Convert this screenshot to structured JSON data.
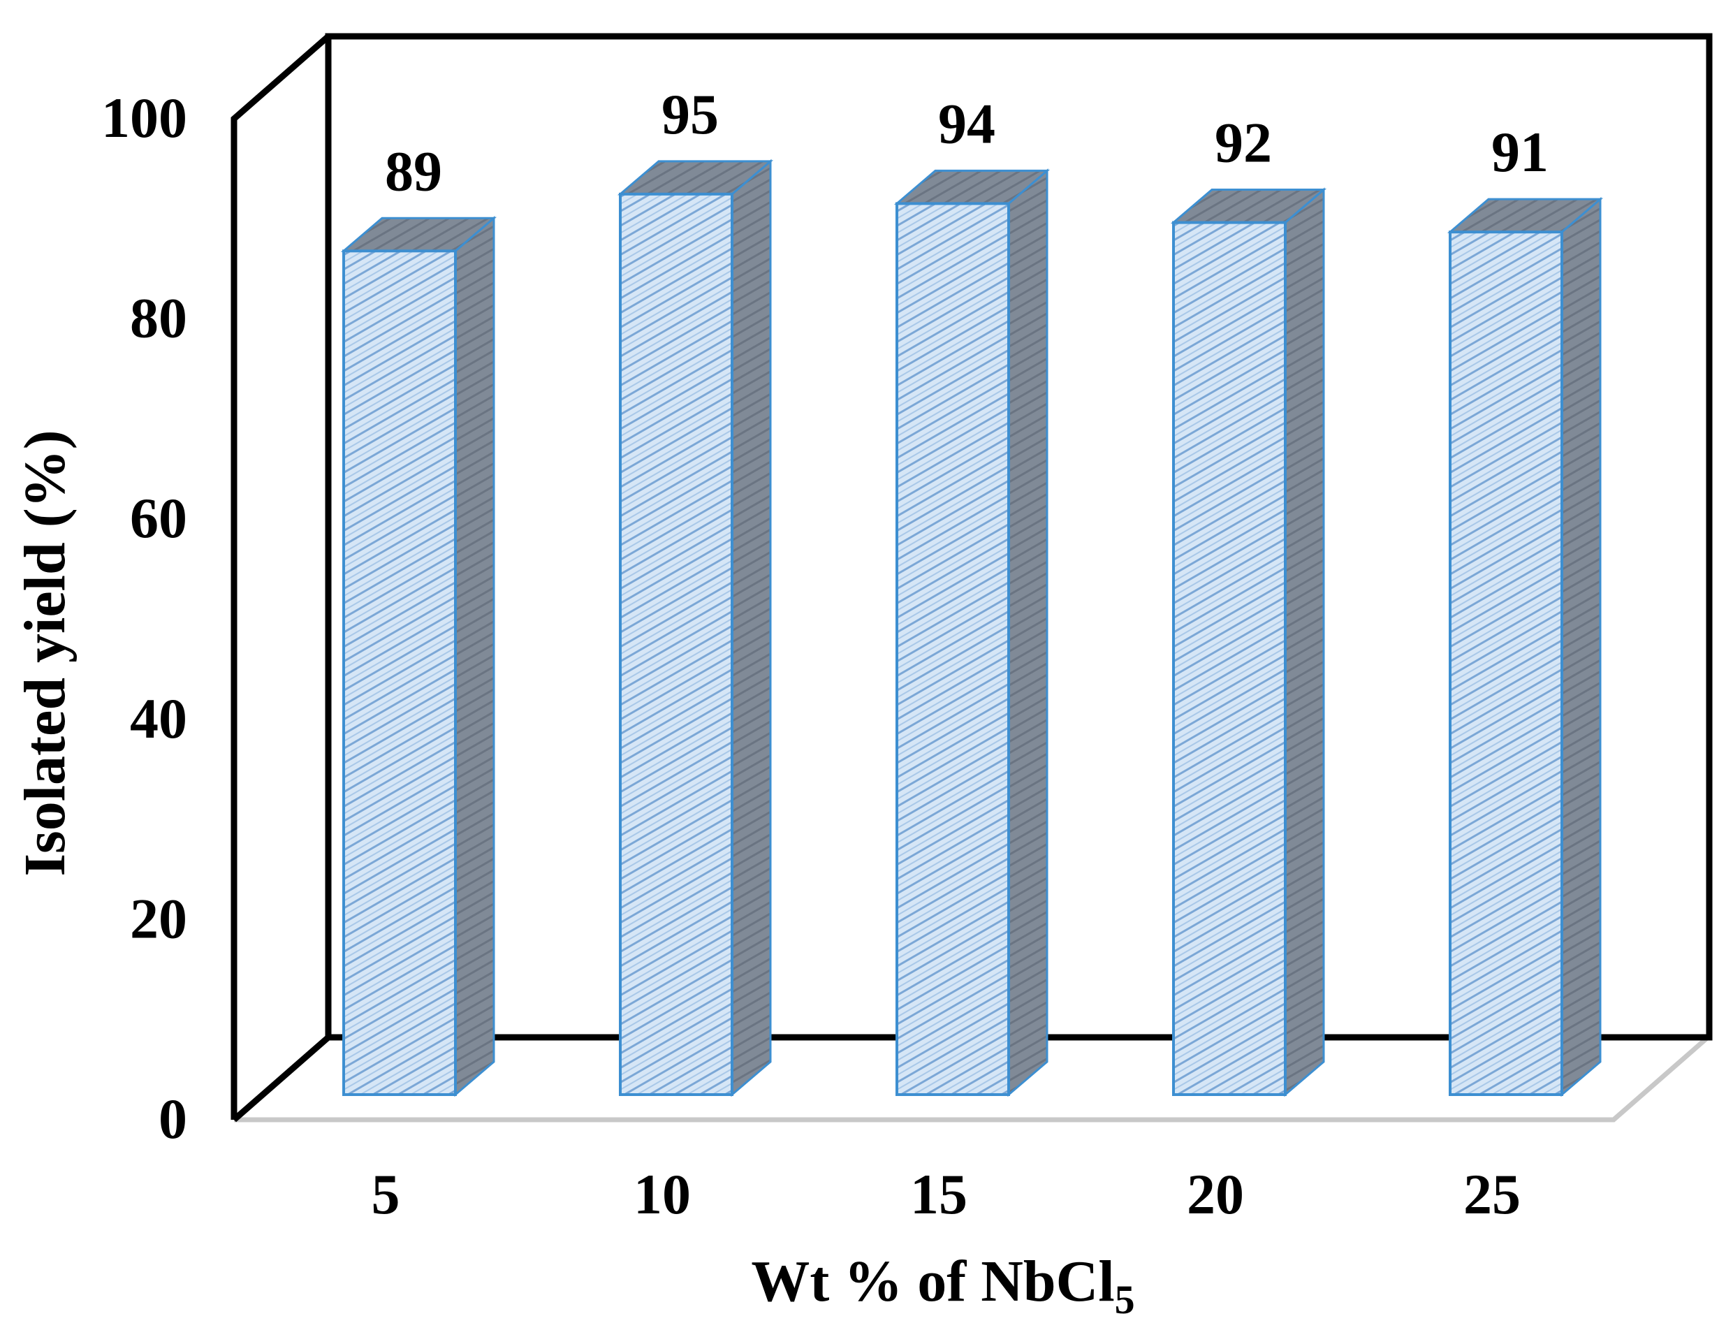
{
  "chart_data": {
    "type": "bar",
    "categories": [
      "5",
      "10",
      "15",
      "20",
      "25"
    ],
    "values": [
      89,
      95,
      94,
      92,
      91
    ],
    "data_labels": [
      "89",
      "95",
      "94",
      "92",
      "91"
    ],
    "title": "",
    "xlabel": {
      "main": "Wt  % of NbCl",
      "subscript": "5"
    },
    "ylabel": "Isolated  yield (%)",
    "ylim": [
      0,
      100
    ],
    "yticks": [
      "0",
      "20",
      "40",
      "60",
      "80",
      "100"
    ],
    "grid": false,
    "legend": "none",
    "style": "3d-column",
    "colors": {
      "bar_front": "#d6e6f6",
      "bar_hatch": "#7ba7d6",
      "bar_edge": "#3d8fd1",
      "bar_side": "#7a8594",
      "bar_top": "#8d97a3",
      "frame": "#000000",
      "floor": "#c8c8c8"
    }
  }
}
